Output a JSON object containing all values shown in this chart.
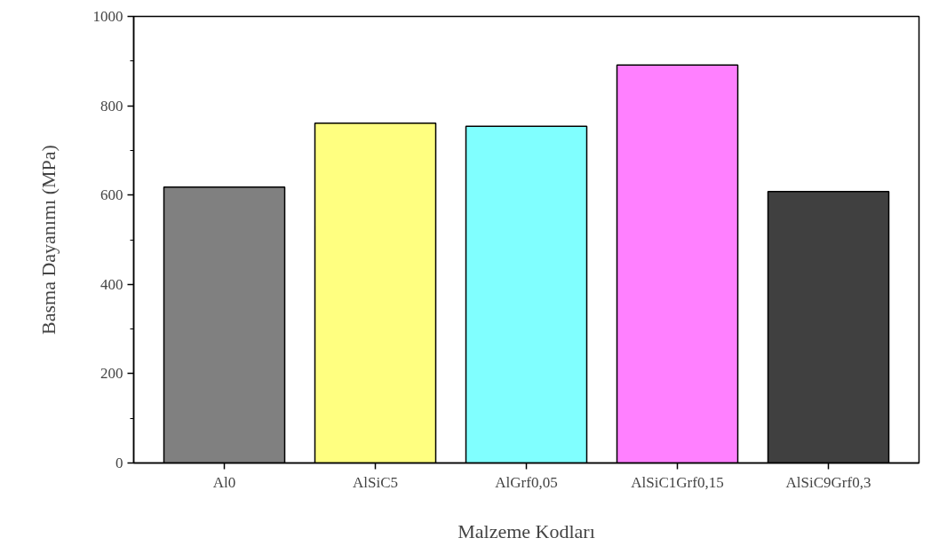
{
  "chart_data": {
    "type": "bar",
    "xlabel": "Malzeme Kodları",
    "ylabel": "Basma Dayanımı (MPa)",
    "categories": [
      "Al0",
      "AlSiC5",
      "AlGrf0,05",
      "AlSiC1Grf0,15",
      "AlSiC9Grf0,3"
    ],
    "values": [
      618,
      761,
      754,
      891,
      608
    ],
    "colors": [
      "#808080",
      "#ffff80",
      "#80ffff",
      "#ff80ff",
      "#404040"
    ],
    "ylim": [
      0,
      1000
    ],
    "yticks": [
      0,
      200,
      400,
      600,
      800,
      1000
    ]
  }
}
